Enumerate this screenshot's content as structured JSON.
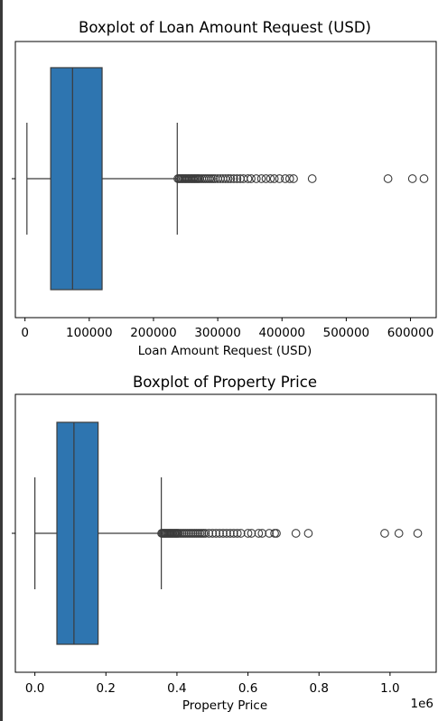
{
  "chart_data": [
    {
      "type": "boxplot",
      "title": "Boxplot of Loan Amount Request (USD)",
      "xlabel": "Loan Amount Request (USD)",
      "xlim": [
        -15000,
        640000
      ],
      "xticks": [
        0,
        100000,
        200000,
        300000,
        400000,
        500000,
        600000
      ],
      "xtick_labels": [
        "0",
        "100000",
        "200000",
        "300000",
        "400000",
        "500000",
        "600000"
      ],
      "offset_label": "",
      "color": "#2e75b0",
      "box": {
        "whisker_low": 3000,
        "q1": 40000,
        "median": 74000,
        "q3": 120000,
        "whisker_high": 237000
      },
      "outliers": [
        238000,
        240000,
        242000,
        244000,
        246000,
        248000,
        250000,
        252000,
        254000,
        256000,
        258000,
        260000,
        262000,
        264000,
        266000,
        268000,
        270000,
        272000,
        275000,
        278000,
        281000,
        284000,
        287000,
        290000,
        293000,
        296000,
        300000,
        304000,
        308000,
        312000,
        316000,
        320000,
        325000,
        330000,
        335000,
        340000,
        347000,
        352000,
        360000,
        368000,
        375000,
        382000,
        388000,
        396000,
        405000,
        412000,
        418000,
        447000,
        565000,
        603000,
        621000
      ]
    },
    {
      "type": "boxplot",
      "title": "Boxplot of Property Price",
      "xlabel": "Property Price",
      "xlim": [
        -0.055,
        1.13
      ],
      "xticks": [
        0.0,
        0.2,
        0.4,
        0.6,
        0.8,
        1.0
      ],
      "xtick_labels": [
        "0.0",
        "0.2",
        "0.4",
        "0.6",
        "0.8",
        "1.0"
      ],
      "offset_label": "1e6",
      "color": "#2e75b0",
      "box": {
        "whisker_low": 0.0,
        "q1": 0.062,
        "median": 0.11,
        "q3": 0.178,
        "whisker_high": 0.356
      },
      "outliers": [
        0.357,
        0.36,
        0.363,
        0.366,
        0.369,
        0.372,
        0.375,
        0.378,
        0.381,
        0.384,
        0.387,
        0.39,
        0.393,
        0.396,
        0.399,
        0.402,
        0.405,
        0.41,
        0.415,
        0.42,
        0.425,
        0.43,
        0.435,
        0.44,
        0.445,
        0.45,
        0.455,
        0.46,
        0.465,
        0.47,
        0.475,
        0.48,
        0.49,
        0.5,
        0.51,
        0.52,
        0.53,
        0.54,
        0.55,
        0.56,
        0.57,
        0.58,
        0.6,
        0.61,
        0.63,
        0.64,
        0.66,
        0.675,
        0.68,
        0.735,
        0.77,
        0.985,
        1.025,
        1.078
      ]
    }
  ]
}
